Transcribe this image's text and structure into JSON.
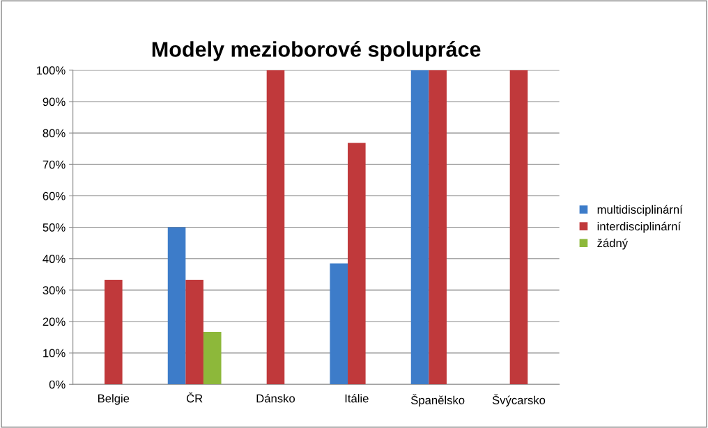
{
  "chart_data": {
    "type": "bar",
    "title": "Modely mezioborové spolupráce",
    "categories": [
      "Belgie",
      "ČR",
      "Dánsko",
      "Itálie",
      "Španělsko",
      "Švýcarsko"
    ],
    "series": [
      {
        "name": "multidisciplinární",
        "color": "#3d7cc9",
        "values": [
          0,
          50,
          0,
          38.5,
          100,
          0
        ]
      },
      {
        "name": "interdisciplinární",
        "color": "#c0393b",
        "values": [
          33.3,
          33.3,
          100,
          76.9,
          100,
          100
        ]
      },
      {
        "name": "žádný",
        "color": "#8db83a",
        "values": [
          0,
          16.7,
          0,
          0,
          0,
          0
        ]
      }
    ],
    "ylim": [
      0,
      100
    ],
    "yticks": [
      {
        "value": 0,
        "label": "0%"
      },
      {
        "value": 10,
        "label": "10%"
      },
      {
        "value": 20,
        "label": "20%"
      },
      {
        "value": 30,
        "label": "30%"
      },
      {
        "value": 40,
        "label": "40%"
      },
      {
        "value": 50,
        "label": "50%"
      },
      {
        "value": 60,
        "label": "60%"
      },
      {
        "value": 70,
        "label": "70%"
      },
      {
        "value": 80,
        "label": "80%"
      },
      {
        "value": 90,
        "label": "90%"
      },
      {
        "value": 100,
        "label": "100%"
      }
    ],
    "grid": "y",
    "legend": "right"
  }
}
